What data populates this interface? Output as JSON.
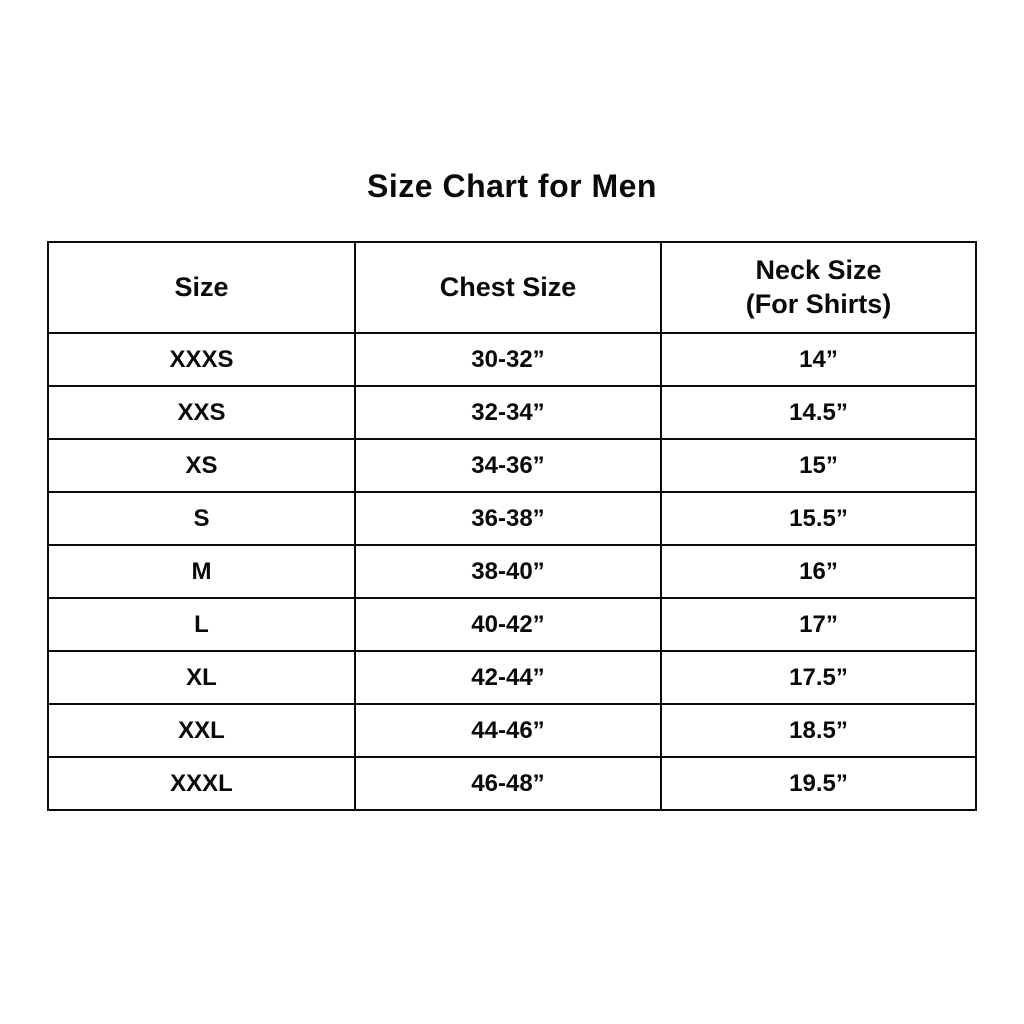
{
  "page": {
    "title": "Size Chart for Men",
    "background_color": "#ffffff",
    "border_color": "#0a0a0a",
    "text_color": "#0a0a0a"
  },
  "chart_data": {
    "type": "table",
    "title": "Size Chart for Men",
    "columns": [
      {
        "label": "Size",
        "sublabel": ""
      },
      {
        "label": "Chest Size",
        "sublabel": ""
      },
      {
        "label": "Neck Size",
        "sublabel": "(For Shirts)"
      }
    ],
    "rows": [
      {
        "size": "XXXS",
        "chest": "30-32”",
        "neck": "14”"
      },
      {
        "size": "XXS",
        "chest": "32-34”",
        "neck": "14.5”"
      },
      {
        "size": "XS",
        "chest": "34-36”",
        "neck": "15”"
      },
      {
        "size": "S",
        "chest": "36-38”",
        "neck": "15.5”"
      },
      {
        "size": "M",
        "chest": "38-40”",
        "neck": "16”"
      },
      {
        "size": "L",
        "chest": "40-42”",
        "neck": "17”"
      },
      {
        "size": "XL",
        "chest": "42-44”",
        "neck": "17.5”"
      },
      {
        "size": "XXL",
        "chest": "44-46”",
        "neck": "18.5”"
      },
      {
        "size": "XXXL",
        "chest": "46-48”",
        "neck": "19.5”"
      }
    ]
  }
}
